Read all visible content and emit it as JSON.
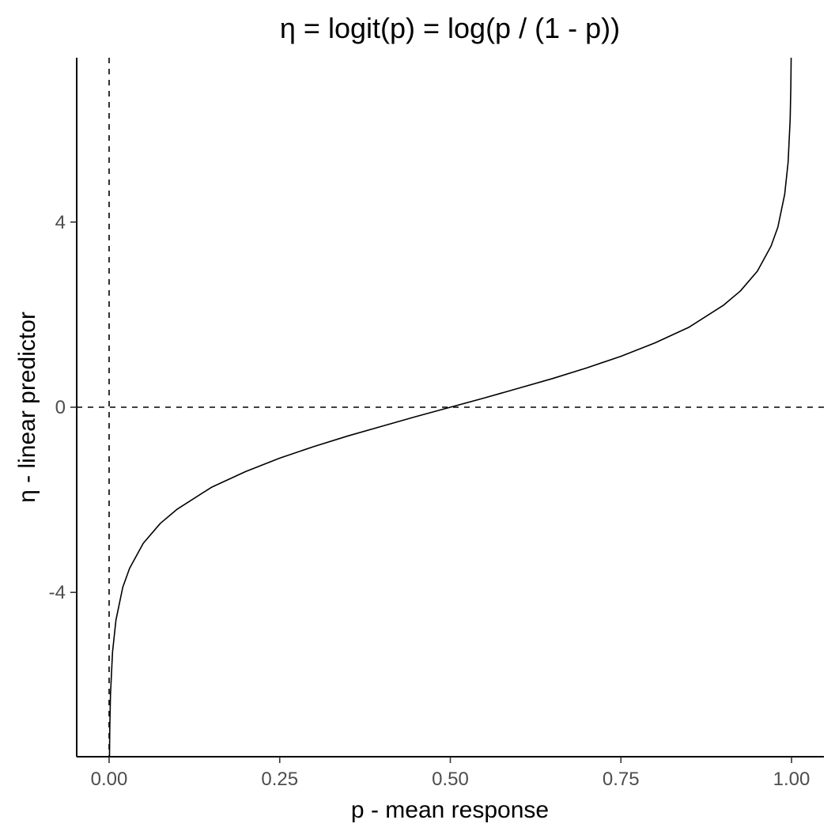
{
  "chart_data": {
    "type": "line",
    "title": "η = logit(p) = log(p / (1 - p))",
    "xlabel": "p - mean response",
    "ylabel": "η - linear predictor",
    "xlim": [
      -0.0475,
      1.0475
    ],
    "ylim": [
      -7.55,
      7.55
    ],
    "x_ticks": [
      0.0,
      0.25,
      0.5,
      0.75,
      1.0
    ],
    "x_tick_labels": [
      "0.00",
      "0.25",
      "0.50",
      "0.75",
      "1.00"
    ],
    "y_ticks": [
      -4,
      0,
      4
    ],
    "y_tick_labels": [
      "-4",
      "0",
      "4"
    ],
    "grid": false,
    "reference_lines": [
      {
        "orientation": "vertical",
        "value": 0,
        "style": "dashed"
      },
      {
        "orientation": "horizontal",
        "value": 0,
        "style": "dashed"
      }
    ],
    "series": [
      {
        "function": "log(p / (1 - p))",
        "x": [
          0.0005,
          0.001,
          0.002,
          0.005,
          0.01,
          0.02,
          0.03,
          0.05,
          0.075,
          0.1,
          0.15,
          0.2,
          0.25,
          0.3,
          0.35,
          0.4,
          0.45,
          0.5,
          0.55,
          0.6,
          0.65,
          0.7,
          0.75,
          0.8,
          0.85,
          0.9,
          0.925,
          0.95,
          0.97,
          0.98,
          0.99,
          0.995,
          0.998,
          0.999,
          0.9995
        ],
        "y": [
          -7.6,
          -6.91,
          -6.21,
          -5.29,
          -4.6,
          -3.89,
          -3.48,
          -2.94,
          -2.51,
          -2.2,
          -1.73,
          -1.39,
          -1.1,
          -0.85,
          -0.62,
          -0.41,
          -0.2,
          0.0,
          0.2,
          0.41,
          0.62,
          0.85,
          1.1,
          1.39,
          1.73,
          2.2,
          2.51,
          2.94,
          3.48,
          3.89,
          4.6,
          5.29,
          6.21,
          6.91,
          7.6
        ]
      }
    ]
  }
}
